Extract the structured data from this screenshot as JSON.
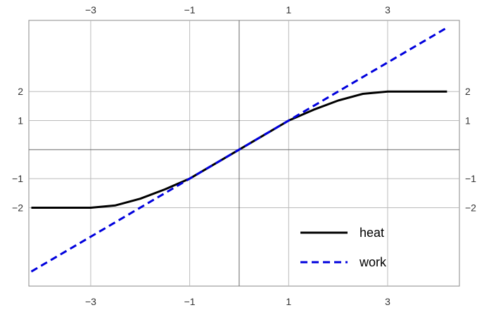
{
  "chart_data": {
    "type": "line",
    "title": "",
    "xlabel": "",
    "ylabel": "",
    "xlim": [
      -4.25,
      4.45
    ],
    "ylim": [
      -4.7,
      4.45
    ],
    "grid": true,
    "legend_position": "bottom-right",
    "x_ticks": [
      -3,
      -1,
      1,
      3
    ],
    "x_tick_labels": [
      "−3",
      "−1",
      "1",
      "3"
    ],
    "y_ticks": [
      2,
      1,
      -1,
      -2
    ],
    "y_tick_labels": [
      "2",
      "1",
      "−1",
      "−2"
    ],
    "colors": {
      "heat": "#000000",
      "work": "#0000dd",
      "grid": "#bbbbbb",
      "axis": "#666666",
      "frame": "#888888"
    },
    "series": [
      {
        "name": "heat",
        "style": "solid",
        "x": [
          -4.2,
          -3,
          -2.5,
          -2,
          -1.5,
          -1,
          0,
          1,
          1.5,
          2,
          2.5,
          3,
          4.2
        ],
        "values": [
          -2,
          -2,
          -1.92,
          -1.69,
          -1.37,
          -1,
          0,
          1,
          1.37,
          1.69,
          1.92,
          2,
          2
        ]
      },
      {
        "name": "work",
        "style": "dashed",
        "x": [
          -4.2,
          4.2
        ],
        "values": [
          -4.2,
          4.2
        ]
      }
    ]
  }
}
